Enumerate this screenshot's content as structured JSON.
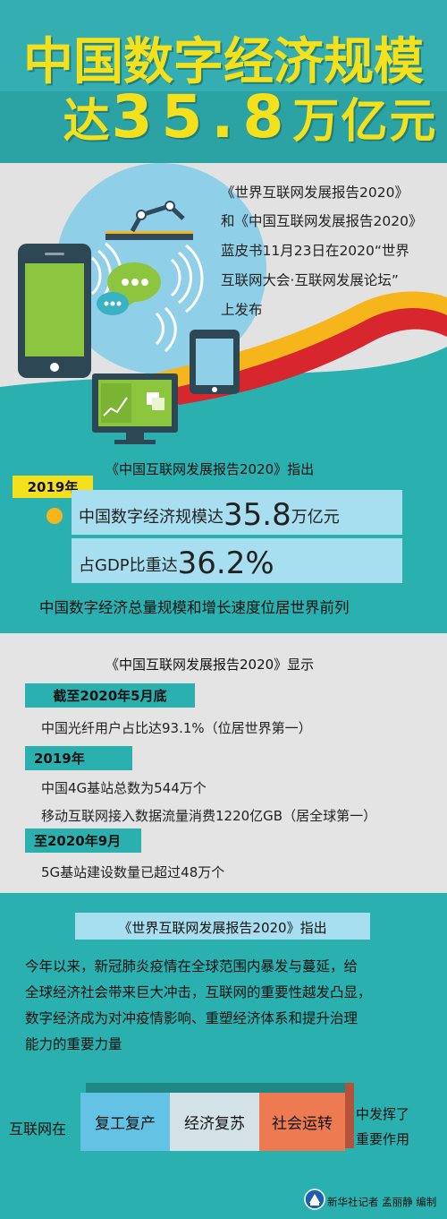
{
  "header": {
    "title_line1": "中国数字经济规模",
    "title_prefix": "达",
    "title_number": "35.8",
    "title_suffix": "万亿元"
  },
  "intro": {
    "lines": [
      "《世界互联网发展报告2020》",
      "和《中国互联网发展报告2020》",
      "蓝皮书11月23日在2020“世界",
      "互联网大会·互联网发展论坛”",
      "上发布"
    ]
  },
  "section2": {
    "heading": "《中国互联网发展报告2020》指出",
    "year_tag": "2019年",
    "stat1_prefix": "中国数字经济规模达",
    "stat1_number": "35.8",
    "stat1_suffix": "万亿元",
    "stat2_prefix": "占GDP比重达",
    "stat2_number": "36.2%",
    "summary": "中国数字经济总量规模和增长速度位居世界前列",
    "colors": {
      "bullet": "#f5b51b",
      "box": "#a7dff0"
    }
  },
  "section3": {
    "heading": "《中国互联网发展报告2020》显示",
    "tag1": "截至2020年5月底",
    "item1": "中国光纤用户占比达93.1%（位居世界第一）",
    "tag2": "2019年",
    "item2": "中国4G基站总数为544万个",
    "item3": "移动互联网接入数据流量消费1220亿GB（居全球第一）",
    "tag3": "至2020年9月",
    "item4": "5G基站建设数量已超过48万个"
  },
  "section4": {
    "heading": "《世界互联网发展报告2020》指出",
    "paragraph_lines": [
      "今年以来，新冠肺炎疫情在全球范围内暴发与蔓延，给",
      "全球经济社会带来巨大冲击，互联网的重要性越发凸显，",
      "数字经济成为对冲疫情影响、重塑经济体系和提升治理",
      "能力的重要力量"
    ],
    "lead": "互联网在",
    "blocks": [
      {
        "label": "复工复产",
        "color": "#64c3e4"
      },
      {
        "label": "经济复苏",
        "color": "#d2e2e6"
      },
      {
        "label": "社会运转",
        "color": "#ee7a52"
      }
    ],
    "tail_line1": "中发挥了",
    "tail_line2": "重要作用",
    "credit": "新华社记者 孟丽静 编制"
  },
  "icons": [
    "phone-icon",
    "robot-arm-icon",
    "chat-bubble-icon",
    "tablet-icon",
    "monitor-icon",
    "xinhua-logo-icon"
  ],
  "colors": {
    "title": "#f5e11b",
    "teal": "#2ab0ae",
    "gray": "#e2e2e2",
    "red": "#d7262e",
    "yellow": "#f5b51b"
  }
}
